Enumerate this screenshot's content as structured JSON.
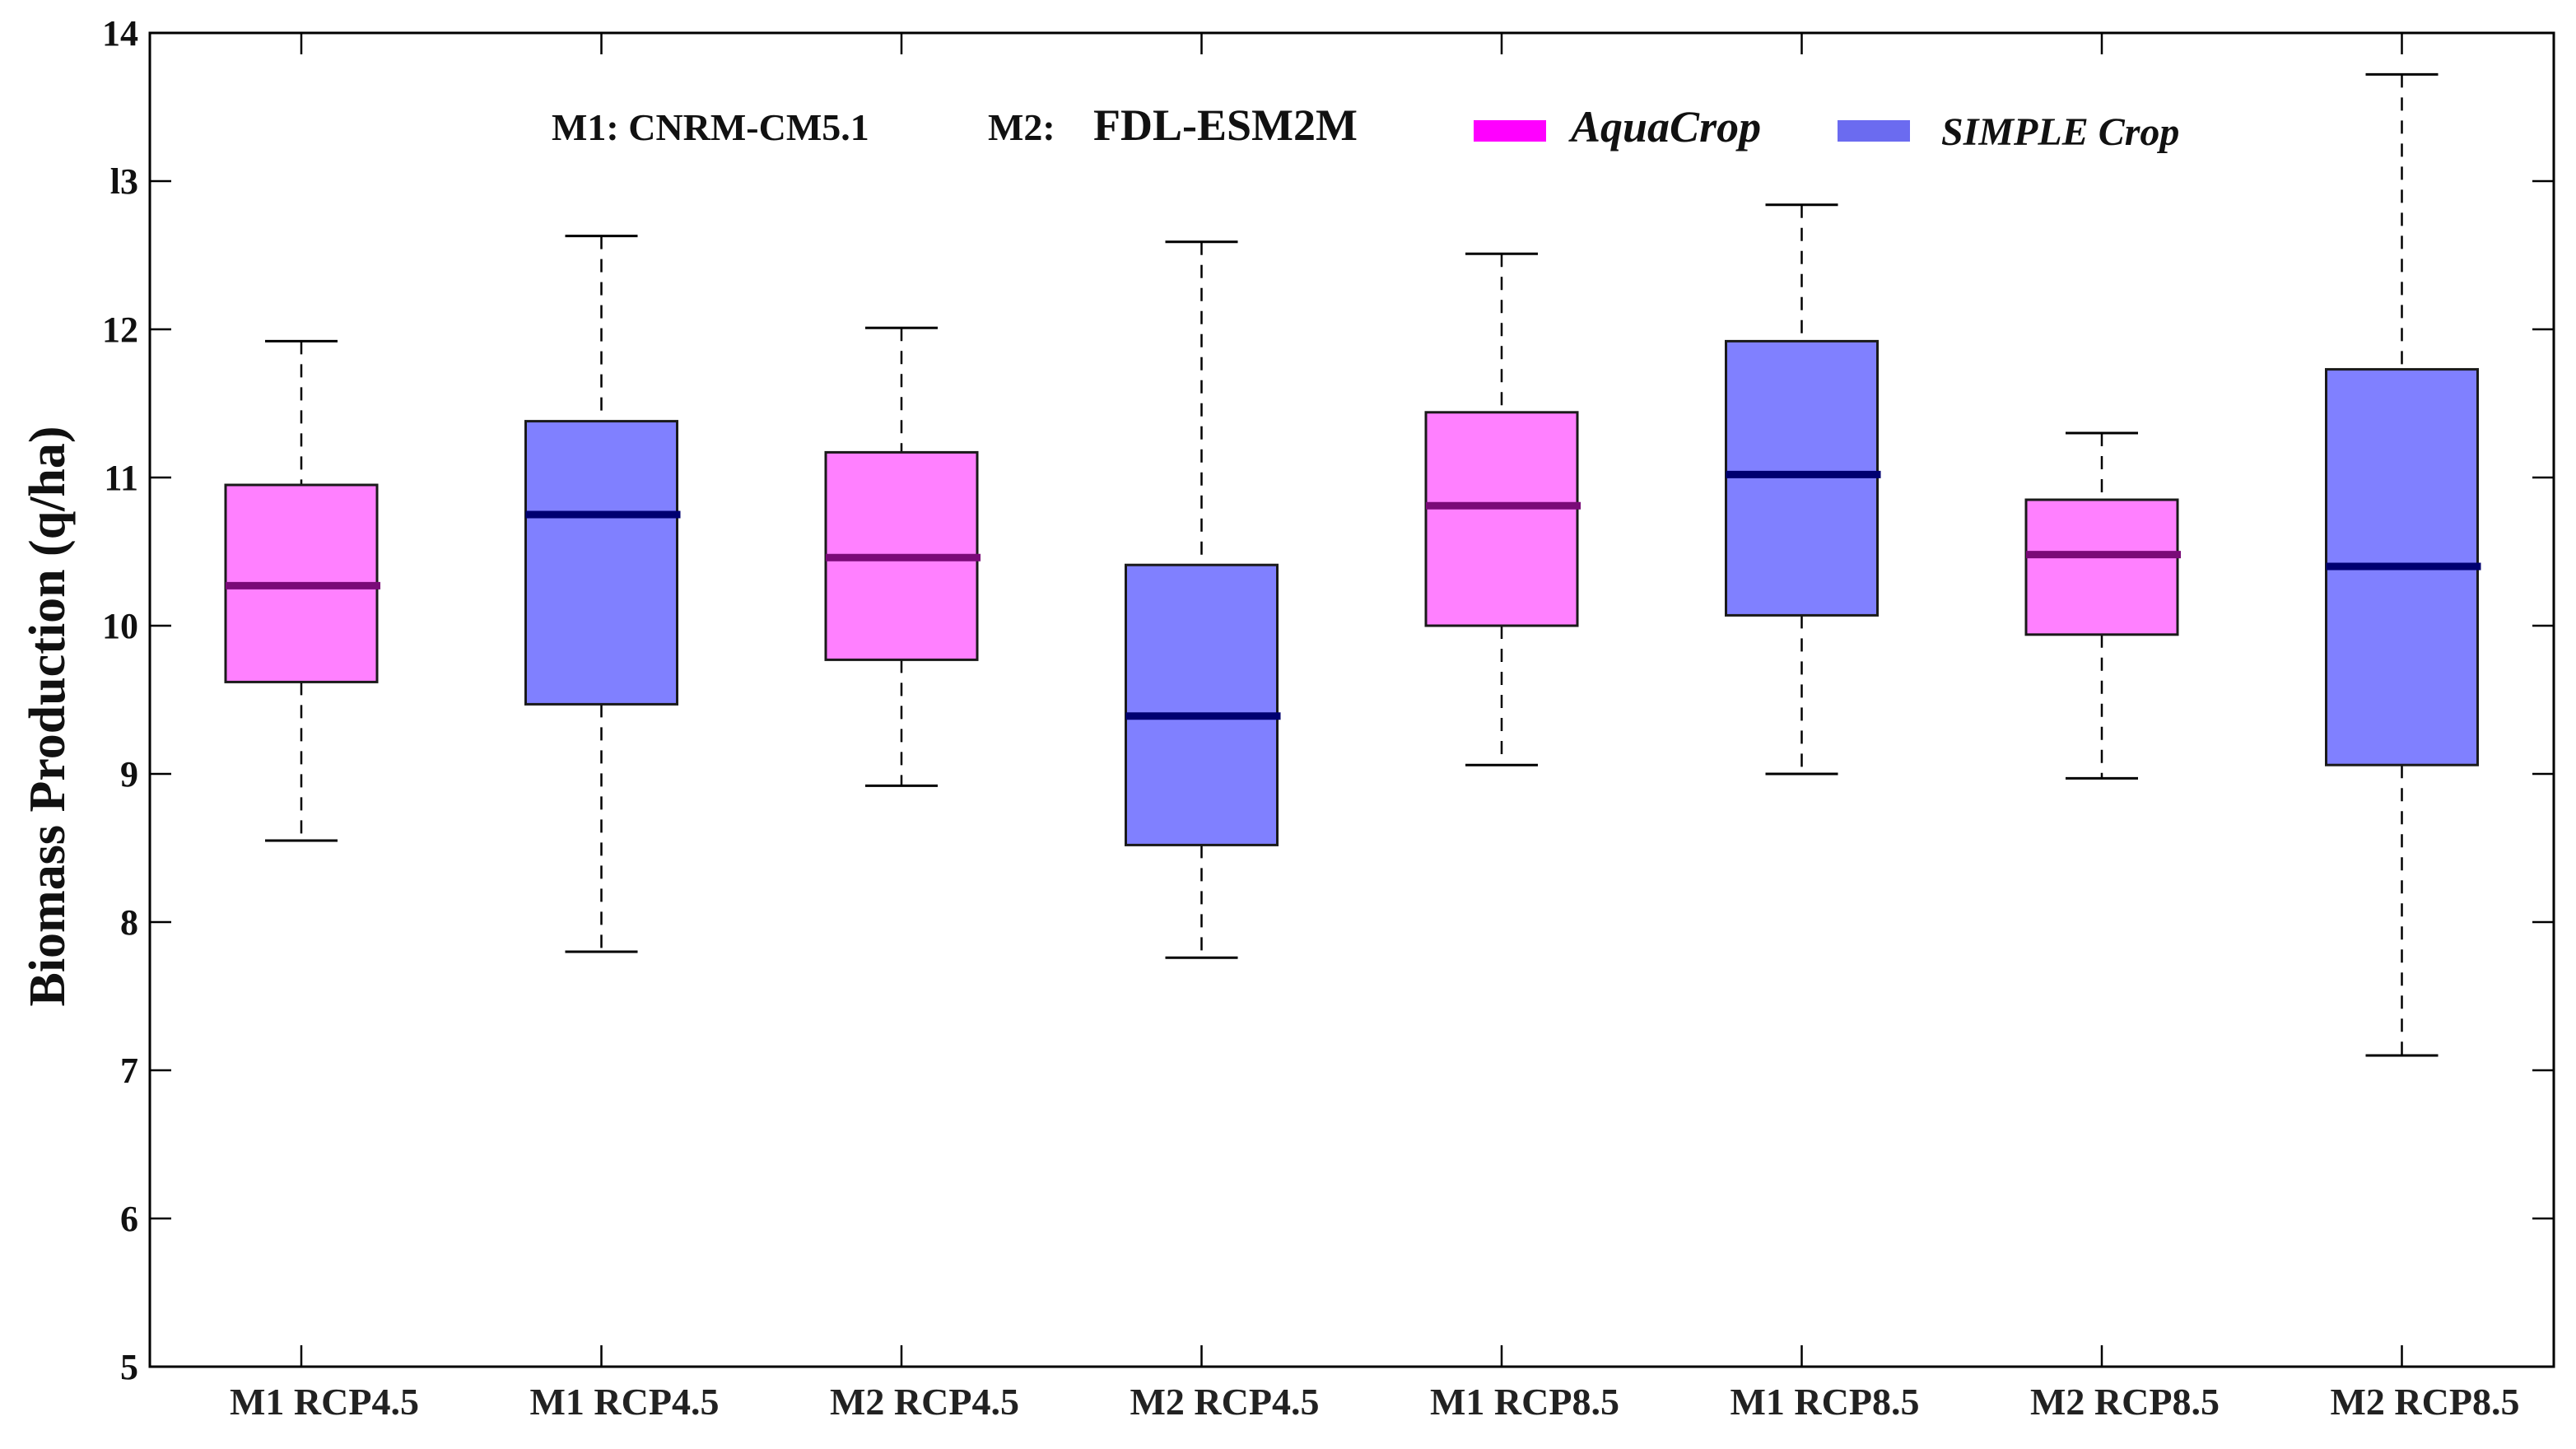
{
  "chart_data": {
    "type": "boxplot",
    "title": "",
    "xlabel": "",
    "ylabel": "Biomass Production  (q/ha)",
    "ylim": [
      5,
      14
    ],
    "yticks": [
      5,
      6,
      7,
      8,
      9,
      10,
      11,
      12,
      13,
      14
    ],
    "ytick_labels": [
      "5",
      "6",
      "7",
      "8",
      "9",
      "10",
      "11",
      "12",
      "l3",
      "14"
    ],
    "grid": false,
    "annotation": {
      "m1_label": "M1:  CNRM-CM5.1",
      "m2_prefix": "M2:",
      "m2_label": "FDL-ESM2M"
    },
    "legend": [
      {
        "name": "AquaCrop",
        "color": "#ff00ff"
      },
      {
        "name": "SIMPLE Crop",
        "color": "#6b6bf0"
      }
    ],
    "legend_position": "top-center",
    "categories": [
      "M1 RCP4.5",
      "M1 RCP4.5",
      "M2 RCP4.5",
      "M2 RCP4.5",
      "M1 RCP8.5",
      "M1 RCP8.5",
      "M2 RCP8.5",
      "M2 RCP8.5"
    ],
    "boxes": [
      {
        "category": "M1 RCP4.5",
        "series": "AquaCrop",
        "whisker_low": 8.55,
        "q1": 9.62,
        "median": 10.27,
        "q3": 10.95,
        "whisker_high": 11.92
      },
      {
        "category": "M1 RCP4.5",
        "series": "SIMPLE Crop",
        "whisker_low": 7.8,
        "q1": 9.47,
        "median": 10.75,
        "q3": 11.38,
        "whisker_high": 12.63
      },
      {
        "category": "M2 RCP4.5",
        "series": "AquaCrop",
        "whisker_low": 8.92,
        "q1": 9.77,
        "median": 10.46,
        "q3": 11.17,
        "whisker_high": 12.01
      },
      {
        "category": "M2 RCP4.5",
        "series": "SIMPLE Crop",
        "whisker_low": 7.76,
        "q1": 8.52,
        "median": 9.39,
        "q3": 10.41,
        "whisker_high": 12.59
      },
      {
        "category": "M1 RCP8.5",
        "series": "AquaCrop",
        "whisker_low": 9.06,
        "q1": 10.0,
        "median": 10.81,
        "q3": 11.44,
        "whisker_high": 12.51
      },
      {
        "category": "M1 RCP8.5",
        "series": "SIMPLE Crop",
        "whisker_low": 9.0,
        "q1": 10.07,
        "median": 11.02,
        "q3": 11.92,
        "whisker_high": 12.84
      },
      {
        "category": "M2 RCP8.5",
        "series": "AquaCrop",
        "whisker_low": 8.97,
        "q1": 9.94,
        "median": 10.48,
        "q3": 10.85,
        "whisker_high": 11.3
      },
      {
        "category": "M2 RCP8.5",
        "series": "SIMPLE Crop",
        "whisker_low": 7.1,
        "q1": 9.06,
        "median": 10.4,
        "q3": 11.73,
        "whisker_high": 13.72
      }
    ],
    "colors": {
      "AquaCrop_box": "#ff80ff",
      "AquaCrop_median": "#7a0a78",
      "SIMPLE_Crop_box": "#8080ff",
      "SIMPLE_Crop_median": "#000070"
    }
  }
}
